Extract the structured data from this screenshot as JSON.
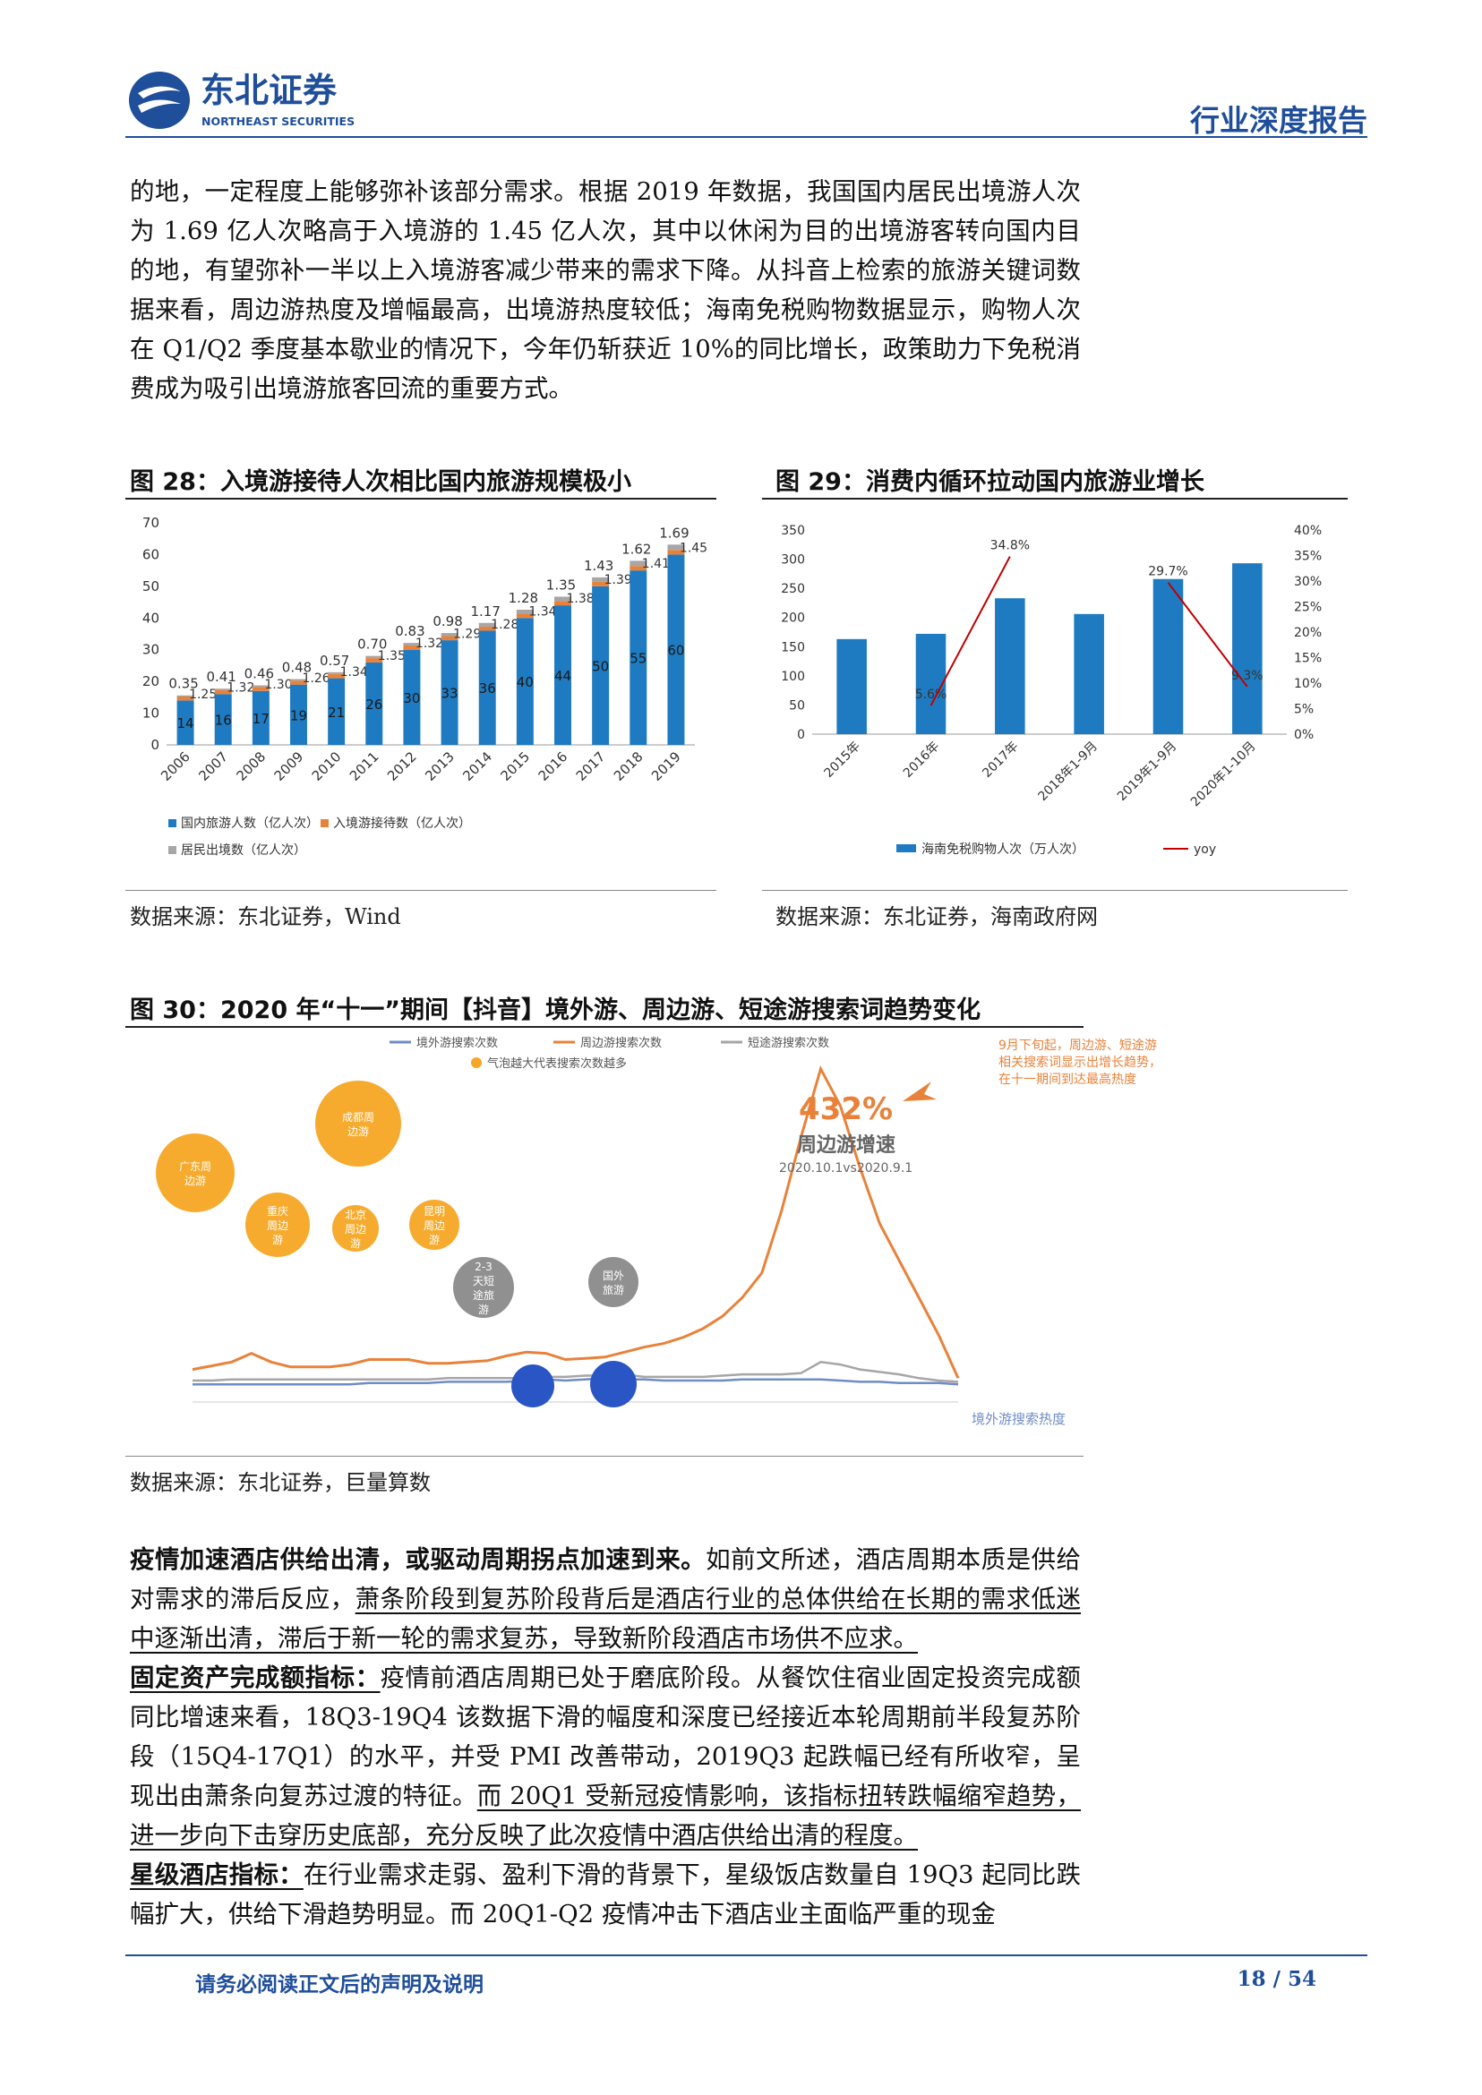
{
  "header": {
    "brand_cn": "东北证券",
    "brand_en": "NORTHEAST SECURITIES",
    "report_type": "行业深度报告"
  },
  "intro_paragraph": "的地，一定程度上能够弥补该部分需求。根据 2019 年数据，我国国内居民出境游人次为 1.69 亿人次略高于入境游的 1.45 亿人次，其中以休闲为目的出境游客转向国内目的地，有望弥补一半以上入境游客减少带来的需求下降。从抖音上检索的旅游关键词数据来看，周边游热度及增幅最高，出境游热度较低；海南免税购物数据显示，购物人次在 Q1/Q2 季度基本歇业的情况下，今年仍斩获近 10%的同比增长，政策助力下免税消费成为吸引出境游旅客回流的重要方式。",
  "fig28": {
    "title": "图 28：入境游接待人次相比国内旅游规模极小",
    "source": "数据来源：东北证券，Wind"
  },
  "fig29": {
    "title": "图 29：消费内循环拉动国内旅游业增长",
    "source": "数据来源：东北证券，海南政府网"
  },
  "fig30": {
    "title": "图 30：2020 年“十一”期间【抖音】境外游、周边游、短途游搜索词趋势变化",
    "source": "数据来源：东北证券，巨量算数",
    "legend": [
      "境外游搜索次数",
      "周边游搜索次数",
      "短途游搜索次数"
    ],
    "bubble_note": "气泡越大代表搜索次数越多",
    "growth_value": "432%",
    "growth_label": "周边游增速",
    "growth_period": "2020.10.1vs2020.9.1",
    "callout_text": [
      "9月下旬起，周边游、短途游",
      "相关搜索词显示出增长趋势，",
      "在十一期间到达最高热度"
    ],
    "bubbles": [
      {
        "label": [
          "成都周",
          "边游"
        ]
      },
      {
        "label": [
          "广东周",
          "边游"
        ]
      },
      {
        "label": [
          "重庆",
          "周边",
          "游"
        ]
      },
      {
        "label": [
          "北京",
          "周边",
          "游"
        ]
      },
      {
        "label": [
          "昆明",
          "周边",
          "游"
        ]
      },
      {
        "label": [
          "2-3",
          "天短",
          "途旅",
          "游"
        ]
      },
      {
        "label": [
          "国外",
          "旅游"
        ]
      }
    ],
    "end_label": "境外游搜索热度"
  },
  "chart_data": [
    {
      "type": "bar",
      "stacked": true,
      "categories": [
        "2006",
        "2007",
        "2008",
        "2009",
        "2010",
        "2011",
        "2012",
        "2013",
        "2014",
        "2015",
        "2016",
        "2017",
        "2018",
        "2019"
      ],
      "series": [
        {
          "name": "国内旅游人数（亿人次）",
          "color": "#1f7bc1",
          "values": [
            14,
            16,
            17,
            19,
            21,
            26,
            30,
            33,
            36,
            40,
            44,
            50,
            55,
            60
          ]
        },
        {
          "name": "入境游接待数（亿人次）",
          "color": "#e8823a",
          "values": [
            1.25,
            1.32,
            1.3,
            1.26,
            1.34,
            1.35,
            1.32,
            1.29,
            1.28,
            1.34,
            1.38,
            1.39,
            1.41,
            1.45
          ]
        },
        {
          "name": "居民出境数（亿人次）",
          "color": "#a6a6a6",
          "values": [
            0.35,
            0.41,
            0.46,
            0.48,
            0.57,
            0.7,
            0.83,
            0.98,
            1.17,
            1.28,
            1.35,
            1.43,
            1.62,
            1.69
          ]
        }
      ],
      "ylim": [
        0,
        70
      ],
      "yticks": [
        0,
        10,
        20,
        30,
        40,
        50,
        60,
        70
      ],
      "orange_labels": [
        "1.25",
        "1.32",
        "1.30",
        "1.26",
        "1.34",
        "1.35",
        "1.32",
        "1.29",
        "1.28",
        "1.34",
        "1.38",
        "1.39",
        "1.41",
        "1.45"
      ],
      "gray_labels": [
        "0.35",
        "0.41",
        "0.46",
        "0.48",
        "0.57",
        "0.70",
        "0.83",
        "0.98",
        "1.17",
        "1.28",
        "1.35",
        "1.43",
        "1.62",
        "1.69"
      ]
    },
    {
      "type": "bar",
      "categories": [
        "2015年",
        "2016年",
        "2017年",
        "2018年1-9月",
        "2019年1-9月",
        "2020年1-10月"
      ],
      "series": [
        {
          "name": "海南免税购物人次（万人次）",
          "color": "#1f7bc1",
          "values": [
            163,
            172,
            233,
            206,
            266,
            293
          ]
        },
        {
          "name": "yoy",
          "color": "#c00000",
          "axis": "right",
          "values": [
            null,
            5.6,
            34.8,
            null,
            29.7,
            9.3
          ]
        }
      ],
      "ylim": [
        0,
        350
      ],
      "yticks": [
        0,
        50,
        100,
        150,
        200,
        250,
        300,
        350
      ],
      "y2lim": [
        0,
        40
      ],
      "y2ticks": [
        "0%",
        "5%",
        "10%",
        "15%",
        "20%",
        "25%",
        "30%",
        "35%",
        "40%"
      ],
      "yoy_labels": [
        "",
        "5.6%",
        "34.8%",
        "",
        "29.7%",
        "9.3%"
      ]
    },
    {
      "type": "line",
      "series": [
        {
          "name": "境外游搜索次数",
          "color": "#6f8cc7",
          "values": [
            10,
            10,
            10,
            10,
            10,
            10,
            10,
            10,
            10,
            11,
            11,
            11,
            11,
            12,
            12,
            12,
            12,
            13,
            14,
            13,
            14,
            15,
            14,
            14,
            13,
            13,
            13,
            13,
            14,
            14,
            14,
            14,
            14,
            13,
            12,
            12,
            11,
            11,
            11,
            10
          ]
        },
        {
          "name": "周边游搜索次数",
          "color": "#e8823a",
          "values": [
            22,
            25,
            28,
            35,
            28,
            24,
            24,
            24,
            26,
            30,
            30,
            30,
            27,
            27,
            28,
            29,
            33,
            36,
            35,
            30,
            31,
            32,
            36,
            40,
            43,
            48,
            55,
            65,
            80,
            100,
            150,
            210,
            265,
            235,
            185,
            140,
            110,
            80,
            50,
            15
          ]
        },
        {
          "name": "短途游搜索次数",
          "color": "#a6a6a6",
          "values": [
            13,
            13,
            14,
            14,
            14,
            14,
            14,
            14,
            14,
            14,
            14,
            14,
            14,
            15,
            15,
            15,
            15,
            15,
            16,
            16,
            17,
            17,
            18,
            16,
            16,
            16,
            16,
            17,
            18,
            18,
            18,
            19,
            28,
            26,
            22,
            20,
            18,
            15,
            13,
            12
          ]
        }
      ]
    }
  ],
  "section": {
    "p1_bold": "疫情加速酒店供给出清，或驱动周期拐点加速到来。",
    "p1_text": "如前文所述，酒店周期本质是供给对需求的滞后反应，",
    "p1_underline": "萧条阶段到复苏阶段背后是酒店行业的总体供给在长期的需求低迷中逐渐出清，滞后于新一轮的需求复苏，导致新阶段酒店市场供不应求。",
    "p2_bold": "固定资产完成额指标：",
    "p2_text": "疫情前酒店周期已处于磨底阶段。从餐饮住宿业固定投资完成额同比增速来看，18Q3-19Q4 该数据下滑的幅度和深度已经接近本轮周期前半段复苏阶段（15Q4-17Q1）的水平，并受 PMI 改善带动，2019Q3 起跌幅已经有所收窄，呈现出由萧条向复苏过渡的特征。",
    "p2_underline": "而 20Q1 受新冠疫情影响，该指标扭转跌幅缩窄趋势，进一步向下击穿历史底部，充分反映了此次疫情中酒店供给出清的程度。",
    "p3_bold": "星级酒店指标：",
    "p3_text": "在行业需求走弱、盈利下滑的背景下，星级饭店数量自 19Q3 起同比跌幅扩大，供给下滑趋势明显。而 20Q1-Q2 疫情冲击下酒店业主面临严重的现金"
  },
  "footer": {
    "disclaimer": "请务必阅读正文后的声明及说明",
    "page": "18 / 54"
  },
  "colors": {
    "brand": "#1f4e9b",
    "bar_blue": "#1f7bc1",
    "orange": "#e8823a",
    "gray": "#a6a6a6",
    "yoy_red": "#c00000",
    "bubble": "#f5a623"
  }
}
